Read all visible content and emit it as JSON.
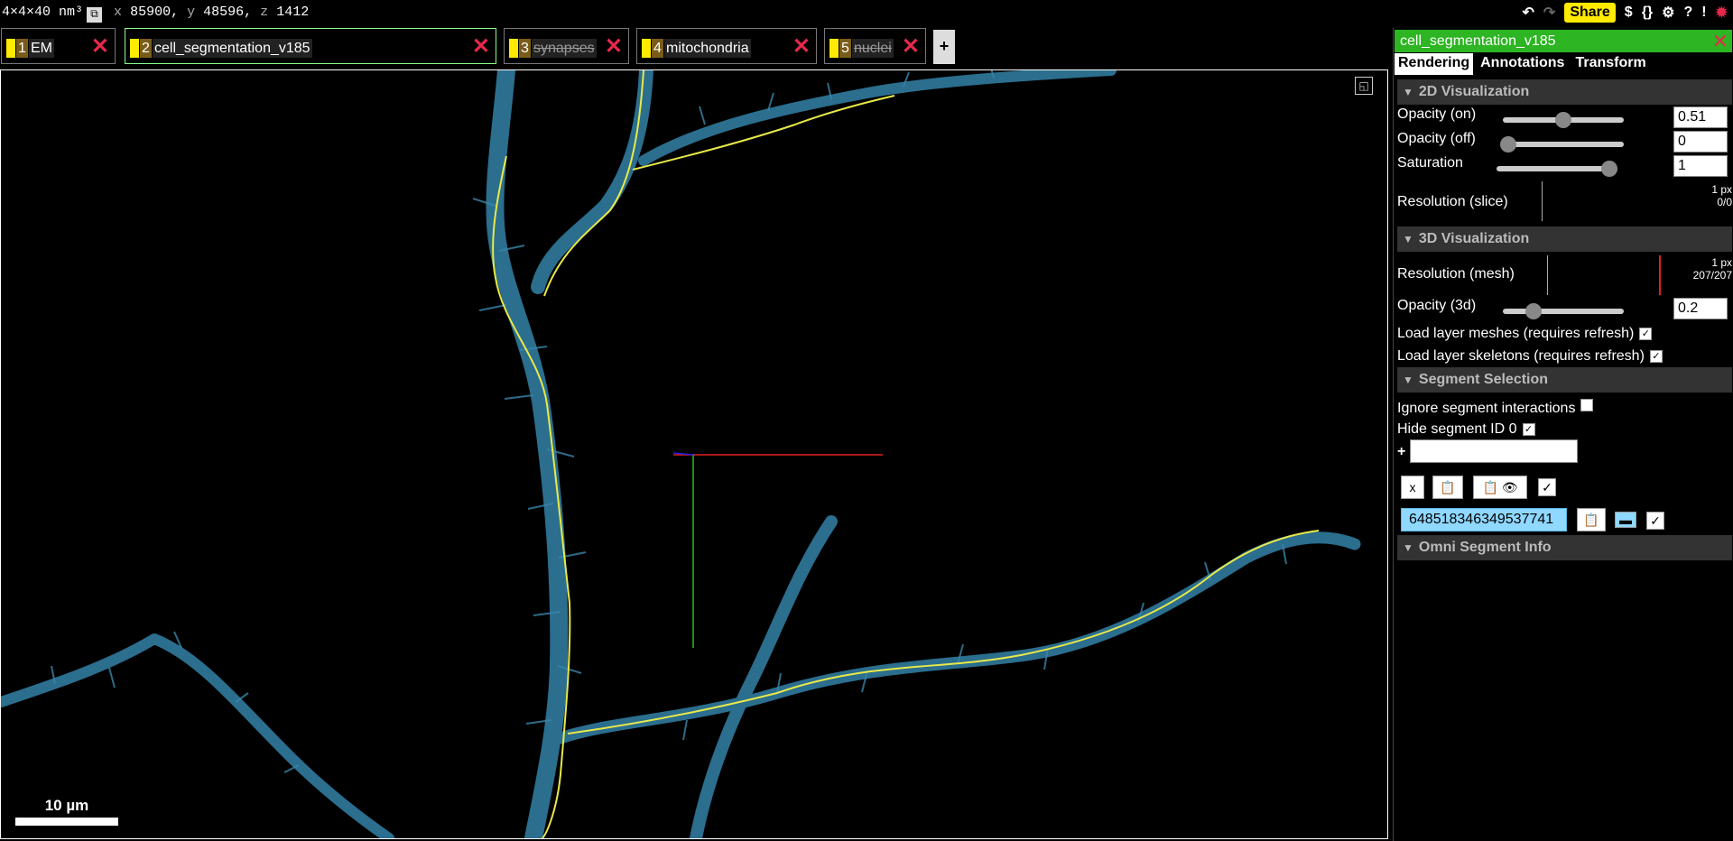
{
  "topbar": {
    "voxel_size": "4×4×40 nm³",
    "x_label": "x",
    "x_value": "85900,",
    "y_label": "y",
    "y_value": "48596,",
    "z_label": "z",
    "z_value": "1412",
    "share_label": "Share",
    "icons": [
      "undo-icon",
      "redo-icon",
      "dollar-icon",
      "json-icon",
      "settings-icon",
      "help-icon",
      "warning-icon",
      "bug-icon"
    ],
    "dollar": "$",
    "json": "{}",
    "gear": "⚙",
    "help": "?",
    "alert": "!"
  },
  "layer_tabs": [
    {
      "num": "1",
      "name": "EM",
      "visible": true
    },
    {
      "num": "2",
      "name": "cell_segmentation_v185",
      "visible": true,
      "active": true
    },
    {
      "num": "3",
      "name": "synapses",
      "visible": false
    },
    {
      "num": "4",
      "name": "mitochondria",
      "visible": true
    },
    {
      "num": "5",
      "name": "nuclei",
      "visible": false
    }
  ],
  "add_tab_label": "+",
  "viewport": {
    "scale_label": "10 µm",
    "colors": {
      "mesh": "#2b6e8e",
      "skeleton": "#e8e84a",
      "axis_x": "#e02020",
      "axis_y": "#20c020",
      "axis_z": "#2020e0"
    }
  },
  "panel": {
    "title": "cell_segmentation_v185",
    "tabs": [
      "Rendering",
      "Annotations",
      "Transform"
    ],
    "sec_2d": "2D Visualization",
    "opacity_on_label": "Opacity (on)",
    "opacity_on_value": "0.51",
    "opacity_on_fraction": 0.51,
    "opacity_off_label": "Opacity (off)",
    "opacity_off_value": "0",
    "saturation_label": "Saturation",
    "saturation_value": "1",
    "res_slice_label": "Resolution (slice)",
    "res_slice_px": "1 px",
    "res_slice_count": "0/0",
    "sec_3d": "3D Visualization",
    "res_mesh_label": "Resolution (mesh)",
    "res_mesh_px": "1 px",
    "res_mesh_count": "207/207",
    "opacity_3d_label": "Opacity (3d)",
    "opacity_3d_value": "0.2",
    "load_meshes_label": "Load layer meshes (requires refresh)",
    "load_skeletons_label": "Load layer skeletons (requires refresh)",
    "sec_segment": "Segment Selection",
    "ignore_interactions_label": "Ignore segment interactions",
    "hide_id0_label": "Hide segment ID 0",
    "plus": "+",
    "x_btn": "x",
    "segment_id": "648518346349537741",
    "sec_omni": "Omni Segment Info"
  }
}
